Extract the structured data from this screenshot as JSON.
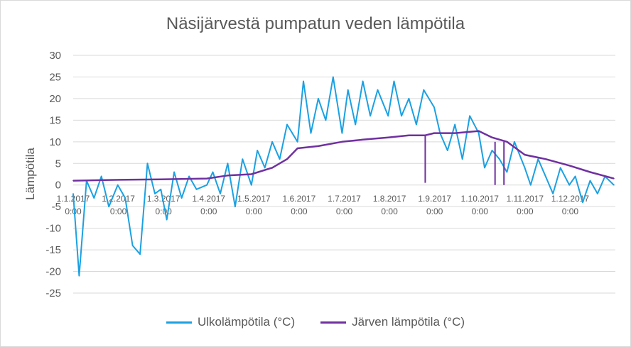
{
  "colors": {
    "outdoor": "#1ba1e2",
    "lake": "#7030a0",
    "grid": "#d9d9d9",
    "text": "#595959"
  },
  "chart_data": {
    "type": "line",
    "title": "Näsijärvestä pumpatun veden lämpötila",
    "xlabel": "",
    "ylabel": "Lämpötila",
    "ylim": [
      -25,
      30
    ],
    "yticks": [
      30,
      25,
      20,
      15,
      10,
      5,
      0,
      -5,
      -10,
      -15,
      -20,
      -25
    ],
    "grid": true,
    "legend_position": "bottom",
    "x_tick_labels": [
      {
        "date": "1.1.2017",
        "time": "0:00"
      },
      {
        "date": "1.2.2017",
        "time": "0:00"
      },
      {
        "date": "1.3.2017",
        "time": "0:00"
      },
      {
        "date": "1.4.2017",
        "time": "0:00"
      },
      {
        "date": "1.5.2017",
        "time": "0:00"
      },
      {
        "date": "1.6.2017",
        "time": "0:00"
      },
      {
        "date": "1.7.2017",
        "time": "0:00"
      },
      {
        "date": "1.8.2017",
        "time": "0:00"
      },
      {
        "date": "1.9.2017",
        "time": "0:00"
      },
      {
        "date": "1.10.2017",
        "time": "0:00"
      },
      {
        "date": "1.11.2017",
        "time": "0:00"
      },
      {
        "date": "1.12.2017",
        "time": "0:00"
      }
    ],
    "series": [
      {
        "name": "Ulkolämpötila (°C)",
        "color": "#1ba1e2",
        "x": [
          "2017-01-01",
          "2017-01-05",
          "2017-01-10",
          "2017-01-15",
          "2017-01-20",
          "2017-01-25",
          "2017-01-31",
          "2017-02-05",
          "2017-02-10",
          "2017-02-15",
          "2017-02-20",
          "2017-02-25",
          "2017-03-01",
          "2017-03-05",
          "2017-03-10",
          "2017-03-15",
          "2017-03-20",
          "2017-03-25",
          "2017-04-01",
          "2017-04-05",
          "2017-04-10",
          "2017-04-15",
          "2017-04-20",
          "2017-04-25",
          "2017-05-01",
          "2017-05-05",
          "2017-05-10",
          "2017-05-15",
          "2017-05-20",
          "2017-05-25",
          "2017-06-01",
          "2017-06-05",
          "2017-06-10",
          "2017-06-15",
          "2017-06-20",
          "2017-06-25",
          "2017-07-01",
          "2017-07-05",
          "2017-07-10",
          "2017-07-15",
          "2017-07-20",
          "2017-07-25",
          "2017-08-01",
          "2017-08-05",
          "2017-08-10",
          "2017-08-15",
          "2017-08-20",
          "2017-08-25",
          "2017-09-01",
          "2017-09-05",
          "2017-09-10",
          "2017-09-15",
          "2017-09-20",
          "2017-09-25",
          "2017-10-01",
          "2017-10-05",
          "2017-10-10",
          "2017-10-15",
          "2017-10-20",
          "2017-10-25",
          "2017-11-01",
          "2017-11-05",
          "2017-11-10",
          "2017-11-15",
          "2017-11-20",
          "2017-11-25",
          "2017-12-01",
          "2017-12-05",
          "2017-12-10",
          "2017-12-15",
          "2017-12-20",
          "2017-12-25",
          "2017-12-31"
        ],
        "y": [
          -2,
          -21,
          1,
          -3,
          2,
          -5,
          0,
          -3,
          -14,
          -16,
          5,
          -2,
          -1,
          -8,
          3,
          -3,
          2,
          -1,
          0,
          3,
          -2,
          5,
          -5,
          6,
          0,
          8,
          4,
          10,
          6,
          14,
          10,
          24,
          12,
          20,
          15,
          25,
          12,
          22,
          14,
          24,
          16,
          22,
          16,
          24,
          16,
          20,
          14,
          22,
          18,
          12,
          8,
          14,
          6,
          16,
          12,
          4,
          8,
          6,
          3,
          10,
          4,
          0,
          6,
          2,
          -2,
          4,
          0,
          2,
          -4,
          1,
          -2,
          2,
          0
        ],
        "peaks": {
          "min": -21,
          "max": 25.5
        }
      },
      {
        "name": "Järven lämpötila (°C)",
        "color": "#7030a0",
        "x": [
          "2017-01-01",
          "2017-02-01",
          "2017-03-01",
          "2017-04-01",
          "2017-04-15",
          "2017-05-01",
          "2017-05-15",
          "2017-05-25",
          "2017-06-01",
          "2017-06-15",
          "2017-07-01",
          "2017-07-15",
          "2017-08-01",
          "2017-08-15",
          "2017-08-26",
          "2017-09-01",
          "2017-09-15",
          "2017-10-01",
          "2017-10-10",
          "2017-10-20",
          "2017-11-01",
          "2017-11-15",
          "2017-12-01",
          "2017-12-15",
          "2017-12-31"
        ],
        "y": [
          1,
          1.2,
          1.3,
          1.5,
          2.2,
          2.5,
          4,
          6,
          8.5,
          9,
          10,
          10.5,
          11,
          11.5,
          11.5,
          12,
          12,
          12.5,
          11,
          10,
          7,
          6,
          4.5,
          3,
          1.5
        ],
        "drops": [
          {
            "x": "2017-08-26",
            "y": 0.5
          },
          {
            "x": "2017-10-12",
            "y": 0
          },
          {
            "x": "2017-10-18",
            "y": 0
          }
        ]
      }
    ]
  }
}
